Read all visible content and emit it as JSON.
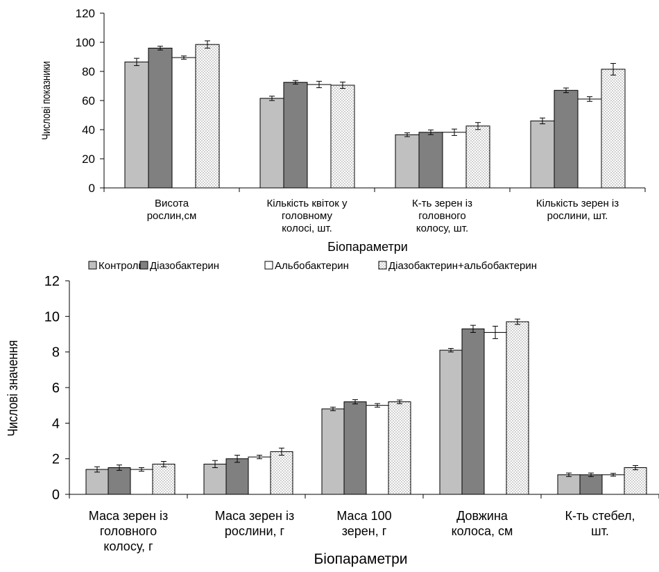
{
  "colors": {
    "control": "#c0c0c0",
    "diazo": "#808080",
    "albo": "#ffffff",
    "combo": "#ffffff",
    "combo_dots": "#888888",
    "outline": "#000000"
  },
  "legend": {
    "placement": "between-charts",
    "entries": [
      "Контроль",
      "Діазобактерин",
      "Альбобактерин",
      "Діазобактерин+альбобактерин"
    ]
  },
  "chart_data": [
    {
      "type": "bar",
      "title": "",
      "xlabel": "Біопараметри",
      "ylabel": "Числові показники",
      "ylim": [
        0,
        120
      ],
      "yticks": [
        0,
        20,
        40,
        60,
        80,
        100,
        120
      ],
      "grid": false,
      "categories": [
        [
          "Висота",
          "рослин,см"
        ],
        [
          "Кількість квіток у",
          "головному",
          "колосі, шт."
        ],
        [
          "К-ть зерен із",
          "головного",
          "колосу, шт."
        ],
        [
          "Кількість зерен із",
          "рослини, шт."
        ]
      ],
      "series": [
        {
          "name": "Контроль",
          "values": [
            86.5,
            61.5,
            36.5,
            46
          ],
          "errors": [
            2.5,
            1.5,
            1.3,
            2
          ]
        },
        {
          "name": "Діазобактерин",
          "values": [
            96,
            72.5,
            38.2,
            67
          ],
          "errors": [
            1.3,
            1.2,
            1.6,
            1.6
          ]
        },
        {
          "name": "Альбобактерин",
          "values": [
            89.5,
            71,
            38.2,
            61
          ],
          "errors": [
            1.1,
            2.2,
            2.2,
            1.6
          ]
        },
        {
          "name": "Діазобактерин+альбобактерин",
          "values": [
            98.5,
            70.5,
            42.5,
            81.5
          ],
          "errors": [
            2.5,
            2.2,
            2.4,
            4
          ]
        }
      ]
    },
    {
      "type": "bar",
      "title": "",
      "xlabel": "Біопараметри",
      "ylabel": "Числові значення",
      "ylim": [
        0,
        12
      ],
      "yticks": [
        0,
        2,
        4,
        6,
        8,
        10,
        12
      ],
      "grid": false,
      "categories": [
        [
          "Маса зерен із",
          "головного",
          "колосу, г"
        ],
        [
          "Маса зерен із",
          "рослини, г"
        ],
        [
          "Маса 100",
          "зерен, г"
        ],
        [
          "Довжина",
          "колоса, см"
        ],
        [
          "К-ть стебел,",
          "шт."
        ]
      ],
      "series": [
        {
          "name": "Контроль",
          "values": [
            1.4,
            1.7,
            4.8,
            8.1,
            1.1
          ],
          "errors": [
            0.15,
            0.2,
            0.1,
            0.1,
            0.1
          ]
        },
        {
          "name": "Діазобактерин",
          "values": [
            1.5,
            2.0,
            5.2,
            9.3,
            1.1
          ],
          "errors": [
            0.15,
            0.2,
            0.12,
            0.2,
            0.1
          ]
        },
        {
          "name": "Альбобактерин",
          "values": [
            1.4,
            2.1,
            5.0,
            9.1,
            1.1
          ],
          "errors": [
            0.1,
            0.1,
            0.1,
            0.35,
            0.08
          ]
        },
        {
          "name": "Діазобактерин+альбобактерин",
          "values": [
            1.7,
            2.4,
            5.2,
            9.7,
            1.5
          ],
          "errors": [
            0.15,
            0.2,
            0.1,
            0.15,
            0.12
          ]
        }
      ]
    }
  ]
}
